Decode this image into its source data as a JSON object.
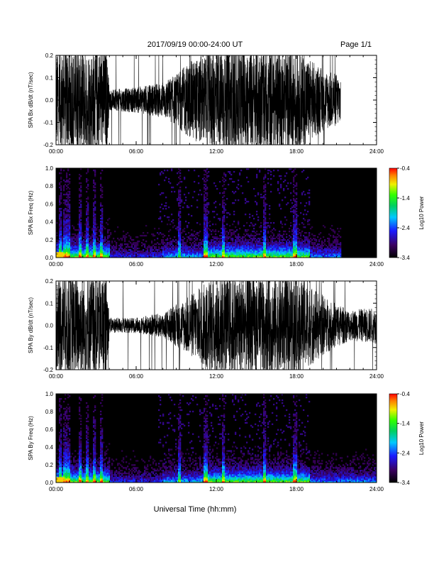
{
  "header": {
    "title": "2017/09/19   00:00-24:00 UT",
    "page": "Page 1/1"
  },
  "xlabel": "Universal Time (hh:mm)",
  "x_ticks": [
    "00:00",
    "06:00",
    "12:00",
    "18:00",
    "24:00"
  ],
  "chart_data": [
    {
      "type": "line",
      "ylabel": "SPA Bx dB/dt (nT/sec)",
      "xlim": [
        0,
        24
      ],
      "ylim": [
        -0.2,
        0.2
      ],
      "y_ticks": [
        "0.2",
        "0.1",
        "0.0",
        "-0.1",
        "-0.2"
      ],
      "data_end_hours": 21.3,
      "envelope": [
        {
          "t": 0.0,
          "amp": 0.2
        },
        {
          "t": 3.8,
          "amp": 0.2
        },
        {
          "t": 4.0,
          "amp": 0.04
        },
        {
          "t": 6.0,
          "amp": 0.05
        },
        {
          "t": 8.0,
          "amp": 0.07
        },
        {
          "t": 9.0,
          "amp": 0.1
        },
        {
          "t": 10.0,
          "amp": 0.15
        },
        {
          "t": 12.0,
          "amp": 0.2
        },
        {
          "t": 15.0,
          "amp": 0.2
        },
        {
          "t": 18.0,
          "amp": 0.2
        },
        {
          "t": 20.0,
          "amp": 0.12
        },
        {
          "t": 21.3,
          "amp": 0.1
        }
      ]
    },
    {
      "type": "heatmap",
      "ylabel": "SPA Bx Freq (Hz)",
      "xlim": [
        0,
        24
      ],
      "ylim": [
        0.0,
        1.0
      ],
      "y_ticks": [
        "1.0",
        "0.8",
        "0.6",
        "0.4",
        "0.2",
        "0.0"
      ],
      "data_end_hours": 21.3,
      "colorbar": {
        "label": "Log10 Power",
        "min": -3.4,
        "max": -0.4,
        "ticks": [
          "-0.4",
          "-1.4",
          "-2.4",
          "-3.4"
        ]
      }
    },
    {
      "type": "line",
      "ylabel": "SPA By dB/dt (nT/sec)",
      "xlim": [
        0,
        24
      ],
      "ylim": [
        -0.2,
        0.2
      ],
      "y_ticks": [
        "0.2",
        "0.1",
        "0.0",
        "-0.1",
        "-0.2"
      ],
      "data_end_hours": 24,
      "envelope": [
        {
          "t": 0.0,
          "amp": 0.2
        },
        {
          "t": 3.8,
          "amp": 0.2
        },
        {
          "t": 4.0,
          "amp": 0.03
        },
        {
          "t": 6.0,
          "amp": 0.03
        },
        {
          "t": 8.0,
          "amp": 0.05
        },
        {
          "t": 9.5,
          "amp": 0.1
        },
        {
          "t": 11.0,
          "amp": 0.16
        },
        {
          "t": 12.0,
          "amp": 0.2
        },
        {
          "t": 18.0,
          "amp": 0.2
        },
        {
          "t": 20.5,
          "amp": 0.1
        },
        {
          "t": 22.0,
          "amp": 0.06
        },
        {
          "t": 24.0,
          "amp": 0.07
        }
      ]
    },
    {
      "type": "heatmap",
      "ylabel": "SPA By Freq (Hz)",
      "xlim": [
        0,
        24
      ],
      "ylim": [
        0.0,
        1.0
      ],
      "y_ticks": [
        "1.0",
        "0.8",
        "0.6",
        "0.4",
        "0.2",
        "0.0"
      ],
      "data_end_hours": 24,
      "colorbar": {
        "label": "Log10 Power",
        "min": -3.4,
        "max": -0.4,
        "ticks": [
          "-0.4",
          "-1.4",
          "-2.4",
          "-3.4"
        ]
      }
    }
  ]
}
